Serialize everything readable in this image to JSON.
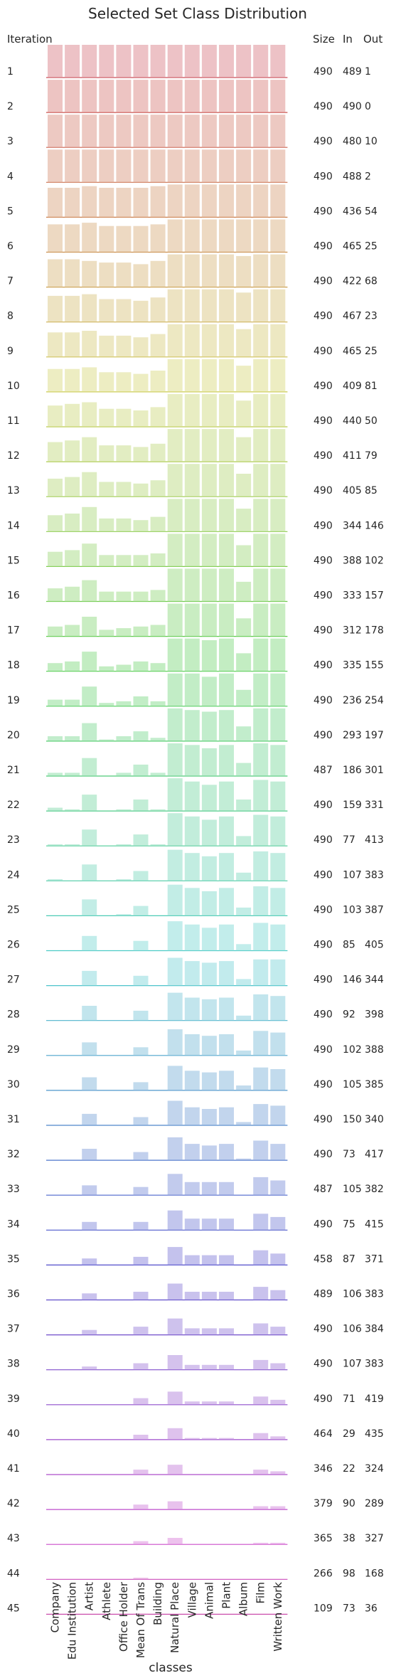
{
  "chart_data": {
    "type": "bar",
    "title": "Selected Set Class Distribution",
    "xlabel": "classes",
    "row_header": "Iteration",
    "table_headers": [
      "Size",
      "In",
      "Out"
    ],
    "categories": [
      "Company",
      "Edu Institution",
      "Artist",
      "Athlete",
      "Office Holder",
      "Mean Of Trans",
      "Building",
      "Natural Place",
      "Village",
      "Animal",
      "Plant",
      "Album",
      "Film",
      "Written Work"
    ],
    "table": [
      {
        "iteration": "1",
        "size": "490",
        "in": "489",
        "out": "1"
      },
      {
        "iteration": "2",
        "size": "490",
        "in": "490",
        "out": "0"
      },
      {
        "iteration": "3",
        "size": "490",
        "in": "480",
        "out": "10"
      },
      {
        "iteration": "4",
        "size": "490",
        "in": "488",
        "out": "2"
      },
      {
        "iteration": "5",
        "size": "490",
        "in": "436",
        "out": "54"
      },
      {
        "iteration": "6",
        "size": "490",
        "in": "465",
        "out": "25"
      },
      {
        "iteration": "7",
        "size": "490",
        "in": "422",
        "out": "68"
      },
      {
        "iteration": "8",
        "size": "490",
        "in": "467",
        "out": "23"
      },
      {
        "iteration": "9",
        "size": "490",
        "in": "465",
        "out": "25"
      },
      {
        "iteration": "10",
        "size": "490",
        "in": "409",
        "out": "81"
      },
      {
        "iteration": "11",
        "size": "490",
        "in": "440",
        "out": "50"
      },
      {
        "iteration": "12",
        "size": "490",
        "in": "411",
        "out": "79"
      },
      {
        "iteration": "13",
        "size": "490",
        "in": "405",
        "out": "85"
      },
      {
        "iteration": "14",
        "size": "490",
        "in": "344",
        "out": "146"
      },
      {
        "iteration": "15",
        "size": "490",
        "in": "388",
        "out": "102"
      },
      {
        "iteration": "16",
        "size": "490",
        "in": "333",
        "out": "157"
      },
      {
        "iteration": "17",
        "size": "490",
        "in": "312",
        "out": "178"
      },
      {
        "iteration": "18",
        "size": "490",
        "in": "335",
        "out": "155"
      },
      {
        "iteration": "19",
        "size": "490",
        "in": "236",
        "out": "254"
      },
      {
        "iteration": "20",
        "size": "490",
        "in": "293",
        "out": "197"
      },
      {
        "iteration": "21",
        "size": "487",
        "in": "186",
        "out": "301"
      },
      {
        "iteration": "22",
        "size": "490",
        "in": "159",
        "out": "331"
      },
      {
        "iteration": "23",
        "size": "490",
        "in": "77",
        "out": "413"
      },
      {
        "iteration": "24",
        "size": "490",
        "in": "107",
        "out": "383"
      },
      {
        "iteration": "25",
        "size": "490",
        "in": "103",
        "out": "387"
      },
      {
        "iteration": "26",
        "size": "490",
        "in": "85",
        "out": "405"
      },
      {
        "iteration": "27",
        "size": "490",
        "in": "146",
        "out": "344"
      },
      {
        "iteration": "28",
        "size": "490",
        "in": "92",
        "out": "398"
      },
      {
        "iteration": "29",
        "size": "490",
        "in": "102",
        "out": "388"
      },
      {
        "iteration": "30",
        "size": "490",
        "in": "105",
        "out": "385"
      },
      {
        "iteration": "31",
        "size": "490",
        "in": "150",
        "out": "340"
      },
      {
        "iteration": "32",
        "size": "490",
        "in": "73",
        "out": "417"
      },
      {
        "iteration": "33",
        "size": "487",
        "in": "105",
        "out": "382"
      },
      {
        "iteration": "34",
        "size": "490",
        "in": "75",
        "out": "415"
      },
      {
        "iteration": "35",
        "size": "458",
        "in": "87",
        "out": "371"
      },
      {
        "iteration": "36",
        "size": "489",
        "in": "106",
        "out": "383"
      },
      {
        "iteration": "37",
        "size": "490",
        "in": "106",
        "out": "384"
      },
      {
        "iteration": "38",
        "size": "490",
        "in": "107",
        "out": "383"
      },
      {
        "iteration": "39",
        "size": "490",
        "in": "71",
        "out": "419"
      },
      {
        "iteration": "40",
        "size": "464",
        "in": "29",
        "out": "435"
      },
      {
        "iteration": "41",
        "size": "346",
        "in": "22",
        "out": "324"
      },
      {
        "iteration": "42",
        "size": "379",
        "in": "90",
        "out": "289"
      },
      {
        "iteration": "43",
        "size": "365",
        "in": "38",
        "out": "327"
      },
      {
        "iteration": "44",
        "size": "266",
        "in": "98",
        "out": "168"
      },
      {
        "iteration": "45",
        "size": "109",
        "in": "73",
        "out": "36"
      }
    ],
    "values": [
      [
        1,
        1,
        1,
        1,
        1,
        1,
        1,
        1,
        1,
        1,
        1,
        1,
        1,
        1
      ],
      [
        1,
        1,
        1,
        1,
        1,
        1,
        1,
        1,
        1,
        1,
        1,
        1,
        1,
        1
      ],
      [
        1,
        1,
        1,
        1,
        1,
        1,
        1,
        1,
        1,
        1,
        1,
        1,
        1,
        1
      ],
      [
        1,
        1,
        1,
        1,
        1,
        1,
        1,
        1,
        1,
        1,
        1,
        1,
        1,
        1
      ],
      [
        0.9,
        0.9,
        0.95,
        0.9,
        0.9,
        0.9,
        0.95,
        1,
        1,
        1,
        1,
        1,
        1,
        1
      ],
      [
        0.85,
        0.85,
        0.9,
        0.8,
        0.8,
        0.8,
        0.85,
        1,
        1,
        1,
        1,
        1,
        1,
        1
      ],
      [
        0.85,
        0.85,
        0.8,
        0.75,
        0.75,
        0.7,
        0.8,
        1,
        1,
        1,
        1,
        0.95,
        1,
        1
      ],
      [
        0.8,
        0.8,
        0.85,
        0.7,
        0.7,
        0.65,
        0.75,
        1,
        1,
        1,
        1,
        0.9,
        1,
        1
      ],
      [
        0.75,
        0.75,
        0.8,
        0.65,
        0.65,
        0.6,
        0.7,
        1,
        1,
        1,
        1,
        0.85,
        1,
        1
      ],
      [
        0.7,
        0.7,
        0.75,
        0.6,
        0.6,
        0.55,
        0.65,
        1,
        1,
        1,
        1,
        0.8,
        1,
        1
      ],
      [
        0.65,
        0.7,
        0.75,
        0.55,
        0.55,
        0.5,
        0.6,
        1,
        1,
        1,
        1,
        0.8,
        1,
        1
      ],
      [
        0.6,
        0.65,
        0.75,
        0.5,
        0.5,
        0.45,
        0.55,
        1,
        1,
        1,
        1,
        0.75,
        1,
        1
      ],
      [
        0.55,
        0.6,
        0.75,
        0.45,
        0.45,
        0.4,
        0.5,
        1,
        1,
        1,
        1,
        0.7,
        1,
        1
      ],
      [
        0.5,
        0.55,
        0.75,
        0.4,
        0.4,
        0.35,
        0.45,
        1,
        1,
        1,
        1,
        0.7,
        1,
        1
      ],
      [
        0.45,
        0.5,
        0.7,
        0.35,
        0.35,
        0.35,
        0.4,
        1,
        1,
        1,
        1,
        0.65,
        1,
        1
      ],
      [
        0.4,
        0.45,
        0.65,
        0.3,
        0.3,
        0.3,
        0.35,
        1,
        1,
        1,
        1,
        0.6,
        1,
        1
      ],
      [
        0.3,
        0.35,
        0.6,
        0.2,
        0.25,
        0.3,
        0.35,
        1,
        1,
        1,
        1,
        0.55,
        1,
        1
      ],
      [
        0.25,
        0.3,
        0.6,
        0.15,
        0.2,
        0.3,
        0.25,
        1,
        1,
        0.95,
        1,
        0.55,
        1,
        1
      ],
      [
        0.2,
        0.2,
        0.6,
        0.1,
        0.15,
        0.3,
        0.15,
        1,
        1,
        0.9,
        1,
        0.5,
        1,
        1
      ],
      [
        0.15,
        0.15,
        0.55,
        0.05,
        0.15,
        0.3,
        0.1,
        1,
        0.95,
        0.9,
        0.95,
        0.45,
        1,
        1
      ],
      [
        0.1,
        0.1,
        0.55,
        0,
        0.1,
        0.35,
        0.1,
        1,
        0.95,
        0.85,
        0.95,
        0.4,
        1,
        0.95
      ],
      [
        0.1,
        0.05,
        0.5,
        0,
        0.05,
        0.35,
        0.05,
        1,
        0.9,
        0.8,
        0.9,
        0.35,
        0.95,
        0.9
      ],
      [
        0.05,
        0.05,
        0.5,
        0,
        0.05,
        0.35,
        0.05,
        1,
        0.9,
        0.8,
        0.9,
        0.3,
        0.95,
        0.9
      ],
      [
        0.05,
        0,
        0.5,
        0,
        0.05,
        0.3,
        0,
        0.95,
        0.85,
        0.75,
        0.85,
        0.25,
        0.9,
        0.85
      ],
      [
        0,
        0,
        0.5,
        0,
        0.05,
        0.3,
        0,
        0.95,
        0.85,
        0.75,
        0.85,
        0.25,
        0.9,
        0.85
      ],
      [
        0,
        0,
        0.45,
        0,
        0,
        0.3,
        0,
        0.9,
        0.8,
        0.7,
        0.8,
        0.2,
        0.85,
        0.8
      ],
      [
        0,
        0,
        0.45,
        0,
        0,
        0.3,
        0,
        0.85,
        0.75,
        0.7,
        0.75,
        0.2,
        0.8,
        0.8
      ],
      [
        0,
        0,
        0.45,
        0,
        0,
        0.3,
        0,
        0.85,
        0.7,
        0.65,
        0.7,
        0.15,
        0.8,
        0.75
      ],
      [
        0,
        0,
        0.4,
        0,
        0,
        0.25,
        0,
        0.8,
        0.65,
        0.6,
        0.65,
        0.15,
        0.75,
        0.7
      ],
      [
        0,
        0,
        0.4,
        0,
        0,
        0.25,
        0,
        0.75,
        0.6,
        0.55,
        0.6,
        0.15,
        0.7,
        0.65
      ],
      [
        0,
        0,
        0.35,
        0,
        0,
        0.25,
        0,
        0.75,
        0.55,
        0.5,
        0.55,
        0.1,
        0.65,
        0.6
      ],
      [
        0,
        0,
        0.35,
        0,
        0,
        0.25,
        0,
        0.7,
        0.5,
        0.45,
        0.5,
        0.05,
        0.6,
        0.5
      ],
      [
        0,
        0,
        0.3,
        0,
        0,
        0.25,
        0,
        0.65,
        0.4,
        0.4,
        0.4,
        0,
        0.55,
        0.45
      ],
      [
        0,
        0,
        0.25,
        0,
        0,
        0.25,
        0,
        0.6,
        0.35,
        0.35,
        0.35,
        0,
        0.5,
        0.4
      ],
      [
        0,
        0,
        0.2,
        0,
        0,
        0.25,
        0,
        0.55,
        0.3,
        0.3,
        0.3,
        0,
        0.45,
        0.35
      ],
      [
        0,
        0,
        0.2,
        0,
        0,
        0.25,
        0,
        0.5,
        0.25,
        0.25,
        0.25,
        0,
        0.4,
        0.3
      ],
      [
        0,
        0,
        0.15,
        0,
        0,
        0.25,
        0,
        0.5,
        0.2,
        0.2,
        0.2,
        0,
        0.35,
        0.25
      ],
      [
        0,
        0,
        0.1,
        0,
        0,
        0.2,
        0,
        0.45,
        0.15,
        0.15,
        0.15,
        0,
        0.3,
        0.2
      ],
      [
        0,
        0,
        0,
        0,
        0,
        0.2,
        0,
        0.4,
        0.1,
        0.1,
        0.1,
        0,
        0.25,
        0.15
      ],
      [
        0,
        0,
        0,
        0,
        0,
        0.15,
        0,
        0.35,
        0.05,
        0.05,
        0.05,
        0,
        0.2,
        0.1
      ],
      [
        0,
        0,
        0,
        0,
        0,
        0.15,
        0,
        0.3,
        0,
        0,
        0,
        0,
        0.15,
        0.1
      ],
      [
        0,
        0,
        0,
        0,
        0,
        0.15,
        0,
        0.25,
        0,
        0,
        0,
        0,
        0.1,
        0.1
      ],
      [
        0,
        0,
        0,
        0,
        0,
        0.1,
        0,
        0.2,
        0,
        0,
        0,
        0,
        0.05,
        0.05
      ],
      [
        0,
        0,
        0,
        0,
        0,
        0.05,
        0,
        0,
        0,
        0,
        0,
        0,
        0,
        0
      ],
      [
        0,
        0,
        0,
        0,
        0,
        0.02,
        0,
        0,
        0,
        0,
        0,
        0,
        0,
        0
      ]
    ],
    "legend": "none",
    "grid": false
  }
}
